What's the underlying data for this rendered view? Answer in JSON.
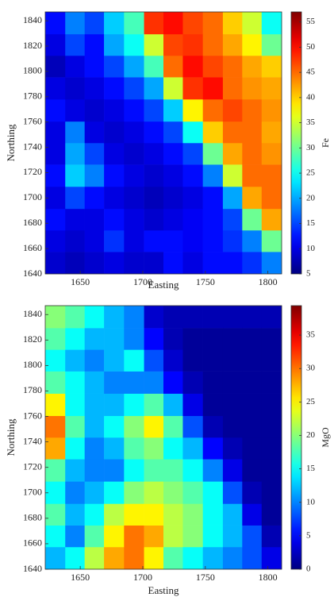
{
  "chart_data": [
    {
      "type": "heatmap",
      "xlabel": "Easting",
      "ylabel": "Northing",
      "colorbar_label": "Fe",
      "colormap": "jet",
      "xlim": [
        1622,
        1811
      ],
      "ylim": [
        1640,
        1847
      ],
      "xticks": [
        1650,
        1700,
        1750,
        1800
      ],
      "yticks": [
        1640,
        1660,
        1680,
        1700,
        1720,
        1740,
        1760,
        1780,
        1800,
        1820,
        1840
      ],
      "clim": [
        5,
        57
      ],
      "cticks": [
        5,
        10,
        15,
        20,
        25,
        30,
        35,
        40,
        45,
        50,
        55
      ],
      "x": [
        1630,
        1646,
        1661,
        1677,
        1693,
        1709,
        1724,
        1740,
        1756,
        1772,
        1787,
        1803
      ],
      "y": [
        1649,
        1666,
        1683,
        1700,
        1718,
        1735,
        1752,
        1769,
        1787,
        1804,
        1821,
        1838
      ],
      "z": [
        [
          9,
          8,
          9,
          10,
          9,
          9,
          12,
          10,
          12,
          12,
          14,
          18
        ],
        [
          10,
          9,
          10,
          14,
          10,
          12,
          12,
          11,
          12,
          14,
          18,
          30
        ],
        [
          12,
          10,
          10,
          12,
          10,
          9,
          10,
          11,
          12,
          15,
          30,
          42
        ],
        [
          10,
          15,
          12,
          10,
          9,
          8,
          9,
          10,
          12,
          20,
          42,
          45
        ],
        [
          12,
          22,
          18,
          12,
          10,
          9,
          10,
          12,
          18,
          35,
          45,
          45
        ],
        [
          10,
          20,
          15,
          10,
          9,
          10,
          12,
          15,
          30,
          42,
          45,
          43
        ],
        [
          10,
          18,
          10,
          9,
          10,
          12,
          15,
          25,
          40,
          45,
          45,
          42
        ],
        [
          12,
          10,
          9,
          10,
          12,
          15,
          22,
          38,
          45,
          47,
          45,
          43
        ],
        [
          10,
          9,
          10,
          12,
          15,
          20,
          35,
          48,
          50,
          45,
          43,
          42
        ],
        [
          8,
          10,
          12,
          15,
          20,
          28,
          45,
          50,
          47,
          45,
          42,
          40
        ],
        [
          10,
          15,
          12,
          20,
          25,
          35,
          47,
          48,
          45,
          42,
          38,
          30
        ],
        [
          12,
          18,
          15,
          22,
          28,
          48,
          50,
          47,
          45,
          40,
          35,
          25
        ]
      ]
    },
    {
      "type": "heatmap",
      "xlabel": "Easting",
      "ylabel": "Northing",
      "colorbar_label": "MgO",
      "colormap": "jet",
      "xlim": [
        1622,
        1811
      ],
      "ylim": [
        1640,
        1847
      ],
      "xticks": [
        1650,
        1700,
        1750,
        1800
      ],
      "yticks": [
        1640,
        1660,
        1680,
        1700,
        1720,
        1740,
        1760,
        1780,
        1800,
        1820,
        1840
      ],
      "clim": [
        0,
        39.4
      ],
      "cticks": [
        0,
        5,
        10,
        15,
        20,
        25,
        30,
        35
      ],
      "x": [
        1630,
        1646,
        1661,
        1677,
        1693,
        1709,
        1724,
        1740,
        1756,
        1772,
        1787,
        1803
      ],
      "y": [
        1649,
        1666,
        1683,
        1700,
        1718,
        1735,
        1752,
        1769,
        1787,
        1804,
        1821,
        1838
      ],
      "z": [
        [
          12,
          15,
          22,
          28,
          30,
          25,
          18,
          15,
          12,
          10,
          8,
          4
        ],
        [
          15,
          10,
          18,
          25,
          30,
          28,
          22,
          20,
          15,
          12,
          8,
          2
        ],
        [
          18,
          12,
          15,
          22,
          25,
          25,
          22,
          20,
          15,
          12,
          4,
          1
        ],
        [
          15,
          10,
          12,
          15,
          20,
          22,
          20,
          18,
          15,
          8,
          2,
          1
        ],
        [
          18,
          12,
          10,
          10,
          15,
          18,
          18,
          15,
          10,
          4,
          1,
          1
        ],
        [
          28,
          15,
          10,
          12,
          18,
          20,
          15,
          12,
          5,
          2,
          1,
          1
        ],
        [
          30,
          18,
          12,
          15,
          20,
          25,
          18,
          8,
          2,
          1,
          1,
          1
        ],
        [
          25,
          15,
          12,
          12,
          15,
          18,
          12,
          4,
          1,
          1,
          1,
          1
        ],
        [
          18,
          15,
          12,
          10,
          10,
          10,
          5,
          2,
          1,
          1,
          1,
          1
        ],
        [
          15,
          12,
          10,
          12,
          15,
          8,
          3,
          1,
          1,
          1,
          1,
          1
        ],
        [
          18,
          15,
          12,
          12,
          10,
          5,
          2,
          1,
          1,
          1,
          1,
          1
        ],
        [
          20,
          18,
          15,
          12,
          10,
          3,
          2,
          2,
          2,
          2,
          2,
          2
        ]
      ]
    }
  ]
}
